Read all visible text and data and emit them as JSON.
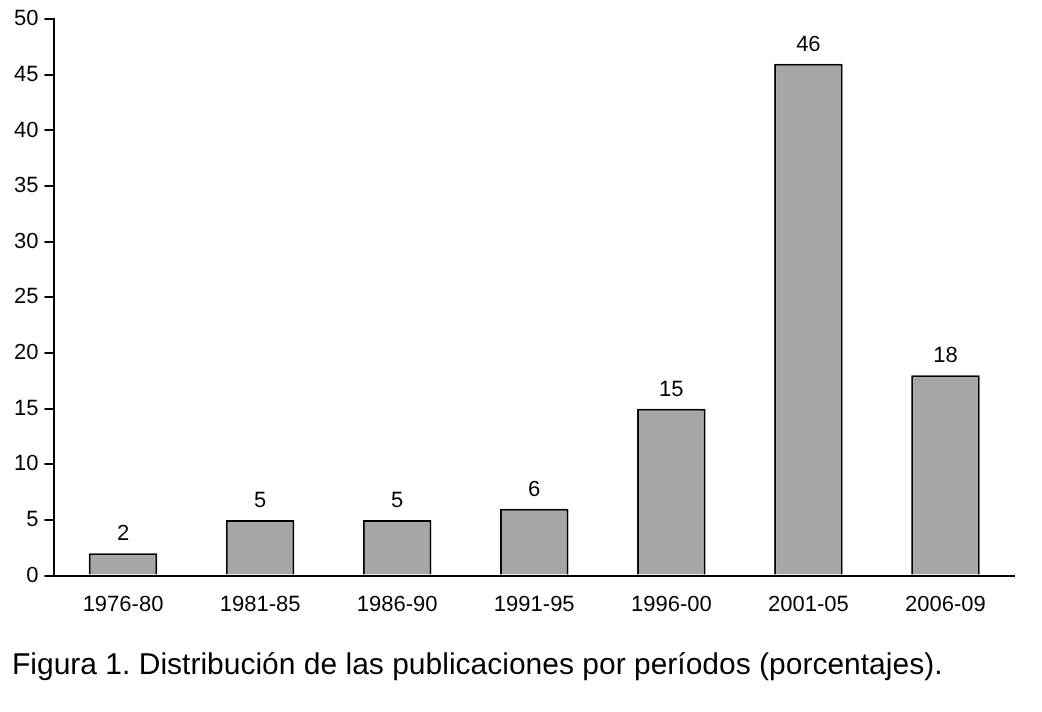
{
  "chart_data": {
    "type": "bar",
    "categories": [
      "1976-80",
      "1981-85",
      "1986-90",
      "1991-95",
      "1996-00",
      "2001-05",
      "2006-09"
    ],
    "values": [
      2,
      5,
      5,
      6,
      15,
      46,
      18
    ],
    "color": "#a6a6a6",
    "ylim": [
      0,
      50
    ],
    "yticks": [
      0,
      5,
      10,
      15,
      20,
      25,
      30,
      35,
      40,
      45,
      50
    ],
    "grid": false,
    "legend": false,
    "data_labels": true,
    "annotations": [
      "Figura 1. Distribución de las publicaciones por períodos (porcentajes)."
    ]
  }
}
